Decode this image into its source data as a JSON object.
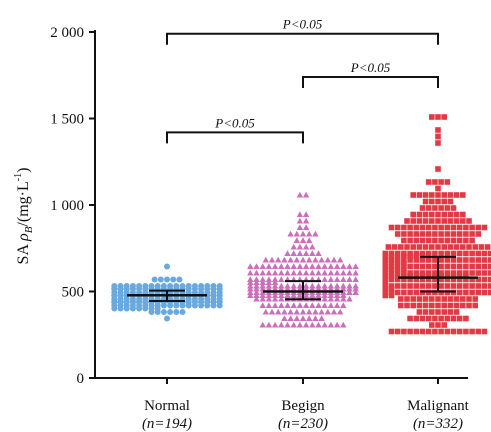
{
  "chart_data": {
    "type": "scatter",
    "ylabel_parts": {
      "prefix": "SA",
      "symbol": "ρ",
      "subscript": "B",
      "unit_open": "/(mg·L",
      "unit_sup": "-1",
      "unit_close": ")"
    },
    "ylim": [
      0,
      2000
    ],
    "yticks": [
      {
        "value": 0,
        "label": "0"
      },
      {
        "value": 500,
        "label": "500"
      },
      {
        "value": 1000,
        "label": "1 000"
      },
      {
        "value": 1500,
        "label": "1 500"
      },
      {
        "value": 2000,
        "label": "2 000"
      }
    ],
    "grid": false,
    "groups": [
      {
        "name": "Normal",
        "n_label": "(n=194)",
        "n": 194,
        "color": "#6aa9dd",
        "median": 478,
        "q1": 445,
        "q3": 505,
        "mean": 482,
        "sd": 48,
        "min": 360,
        "max": 660
      },
      {
        "name": "Begign",
        "n_label": "(n=230)",
        "n": 230,
        "color": "#cc6fba",
        "median": 500,
        "q1": 455,
        "q3": 560,
        "mean": 510,
        "sd": 110,
        "min": 320,
        "max": 1070
      },
      {
        "name": "Malignant",
        "n_label": "(n=332)",
        "n": 332,
        "color": "#e23a44",
        "median": 580,
        "q1": 500,
        "q3": 700,
        "mean": 620,
        "sd": 200,
        "min": 280,
        "max": 1510
      }
    ],
    "comparisons": [
      {
        "from": 0,
        "to": 1,
        "label": "P<0.05",
        "level": 1420
      },
      {
        "from": 1,
        "to": 2,
        "label": "P<0.05",
        "level": 1740
      },
      {
        "from": 0,
        "to": 2,
        "label": "P<0.05",
        "level": 1990
      }
    ]
  }
}
